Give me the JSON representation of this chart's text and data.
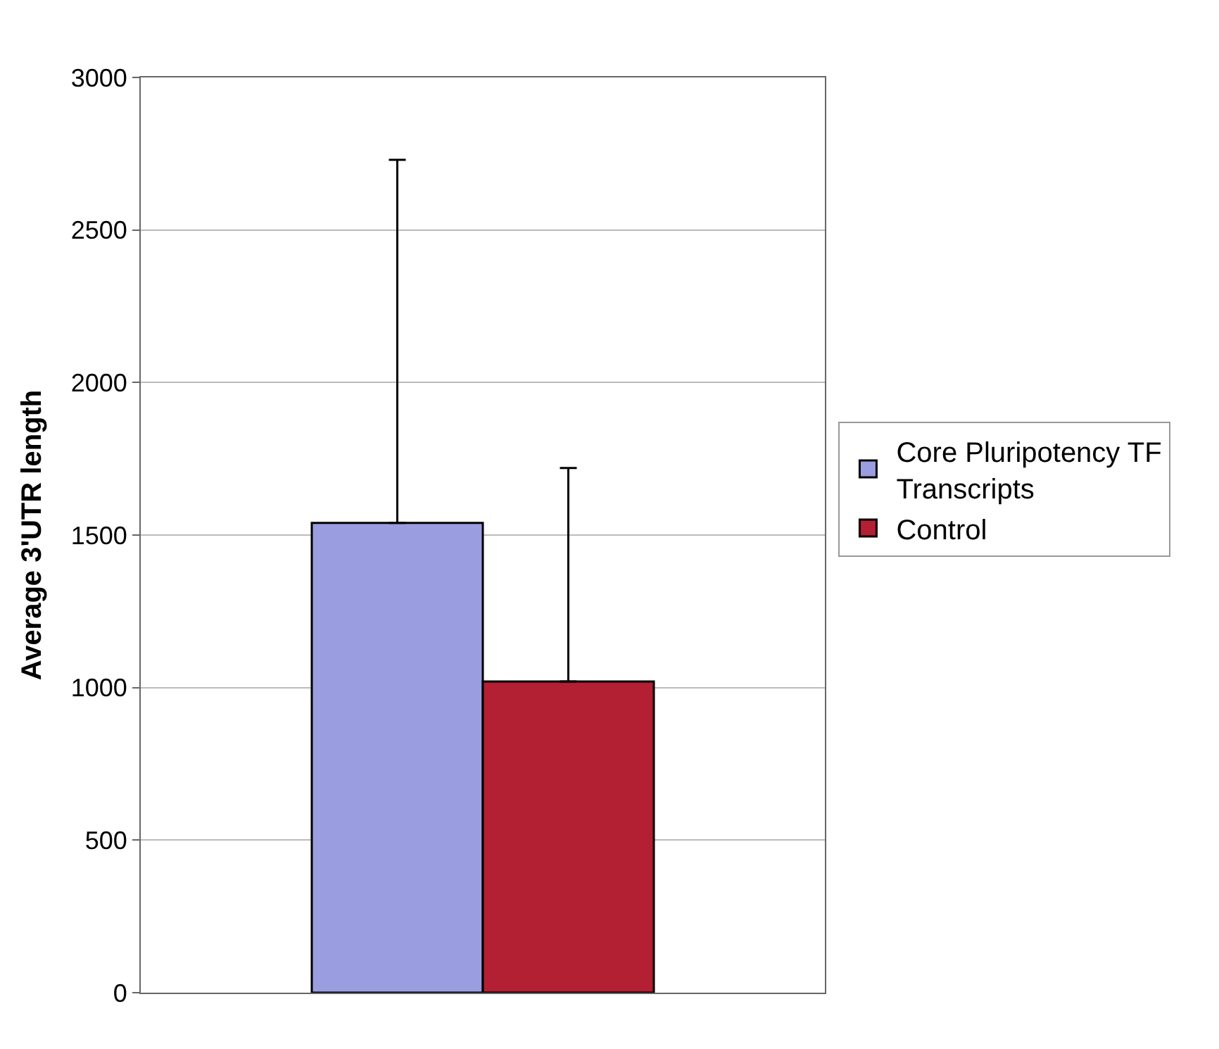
{
  "chart_data": {
    "type": "bar",
    "ylabel": "Average 3'UTR length",
    "categories": [
      null
    ],
    "series": [
      {
        "name": "Core Pluripotency TF Transcripts",
        "color": "#9a9ee0",
        "values": [
          1540
        ],
        "errors": [
          [
            1540,
            2730
          ]
        ]
      },
      {
        "name": "Control",
        "color": "#b31f33",
        "values": [
          1020
        ],
        "errors": [
          [
            1020,
            1720
          ]
        ]
      }
    ],
    "ylim": [
      0,
      3000
    ],
    "yticks": [
      0,
      500,
      1000,
      1500,
      2000,
      2500,
      3000
    ],
    "grid": "y",
    "legend": "right"
  }
}
